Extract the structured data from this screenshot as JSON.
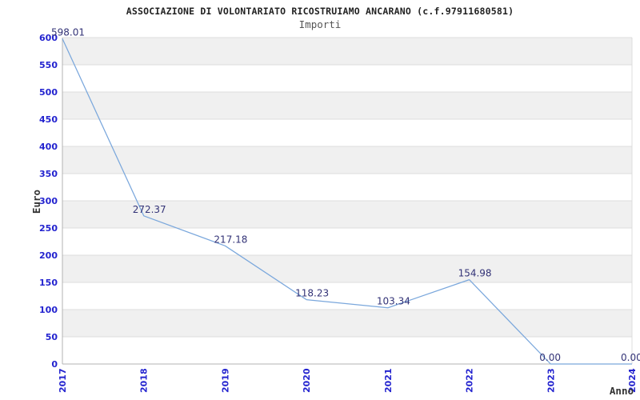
{
  "chart_data": {
    "type": "line",
    "title": "ASSOCIAZIONE DI VOLONTARIATO RICOSTRUIAMO ANCARANO (c.f.97911680581)",
    "subtitle": "Importi",
    "categories": [
      "2017",
      "2018",
      "2019",
      "2020",
      "2021",
      "2022",
      "2023",
      "2024"
    ],
    "values": [
      598.01,
      272.37,
      217.18,
      118.23,
      103.34,
      154.98,
      0,
      0
    ],
    "point_labels": [
      "598.01",
      "272.37",
      "217.18",
      "118.23",
      "103.34",
      "154.98",
      "0.00",
      "0.00"
    ],
    "xlabel": "Anno",
    "ylabel": "Euro",
    "ylim": [
      0,
      600
    ],
    "yticks": [
      0,
      50,
      100,
      150,
      200,
      250,
      300,
      350,
      400,
      450,
      500,
      550,
      600
    ],
    "grid": true,
    "alternating_bands": true,
    "legend_position": "none",
    "colors": {
      "line": "#7aa7dc",
      "tick_label": "#2323cf",
      "data_label": "#333377",
      "band": "#f0f0f0",
      "grid": "#dcdcdc",
      "axis": "#b3b3b3",
      "title": "#222222",
      "subtitle": "#555555",
      "axis_title": "#333333",
      "background": "#ffffff"
    }
  }
}
